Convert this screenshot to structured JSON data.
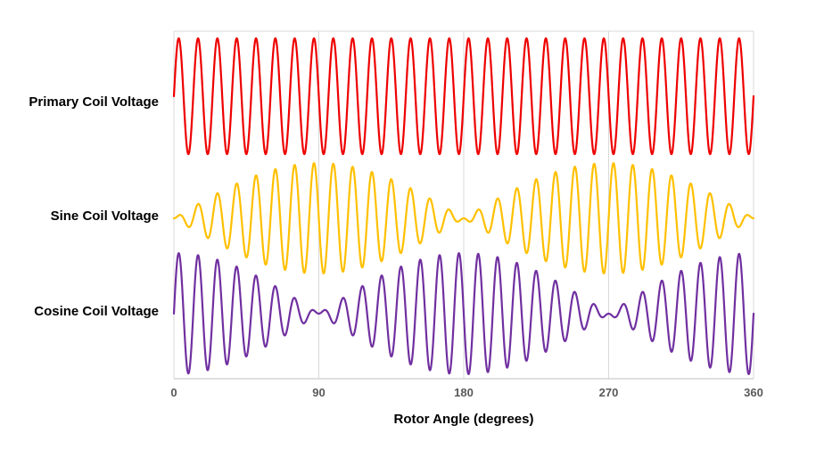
{
  "chart_data": {
    "type": "line",
    "title": "",
    "xlabel": "Rotor Angle (degrees)",
    "ylabel": "",
    "x_range": [
      0,
      360
    ],
    "x_ticks": [
      "0",
      "90",
      "180",
      "270",
      "360"
    ],
    "grid": "vertical-gridlines-only",
    "legend_position": "left-row-labels",
    "carrier_cycles_per_360deg": 30,
    "series": [
      {
        "name": "Primary Coil Voltage",
        "color": "#ee0000",
        "envelope": "constant",
        "relative_amplitude": 1,
        "description": "Constant-amplitude excitation carrier"
      },
      {
        "name": "Sine Coil Voltage",
        "color": "#ffc000",
        "envelope": "sin",
        "relative_amplitude": 1,
        "description": "Carrier amplitude-modulated by sin(rotor angle); nulls at 0, 180, 360 degrees"
      },
      {
        "name": "Cosine Coil Voltage",
        "color": "#7030a0",
        "envelope": "cos",
        "relative_amplitude": 1,
        "description": "Carrier amplitude-modulated by cos(rotor angle); nulls at 90, 270 degrees"
      }
    ]
  },
  "colors": {
    "background": "#ffffff",
    "gridline": "#d9d9d9",
    "axis_line": "#bfbfbf",
    "tick_label": "#595959",
    "text": "#000000"
  }
}
